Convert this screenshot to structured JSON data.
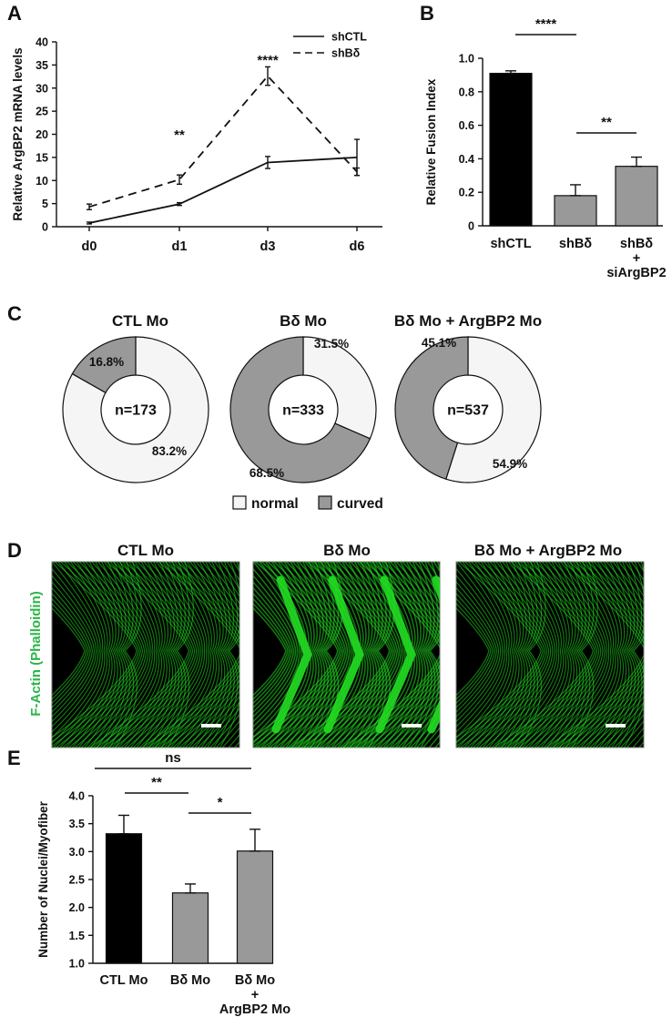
{
  "panels": {
    "A": "A",
    "B": "B",
    "C": "C",
    "D": "D",
    "E": "E"
  },
  "chart_data": [
    {
      "id": "A",
      "type": "line",
      "categories": [
        "d0",
        "d1",
        "d3",
        "d6"
      ],
      "ylabel": "Relative  ArgBP2 mRNA levels",
      "ylim": [
        0,
        40
      ],
      "yticks": [
        0,
        5,
        10,
        15,
        20,
        25,
        30,
        35,
        40
      ],
      "series": [
        {
          "name": "shCTL",
          "style": "solid",
          "values": [
            0.8,
            4.9,
            13.9,
            15.0
          ],
          "errors": [
            0.2,
            0.3,
            1.3,
            3.9
          ]
        },
        {
          "name": "shBδ",
          "style": "dashed",
          "values": [
            4.3,
            10.2,
            32.6,
            11.9
          ],
          "errors": [
            0.6,
            1.0,
            2.0,
            0.8
          ]
        }
      ],
      "annotations": [
        {
          "category": "d1",
          "text": "**"
        },
        {
          "category": "d3",
          "text": "****"
        }
      ]
    },
    {
      "id": "B",
      "type": "bar",
      "categories": [
        "shCTL",
        "shBδ",
        "shBδ\n+\nsiArgBP2"
      ],
      "values": [
        0.91,
        0.18,
        0.355
      ],
      "errors": [
        0.015,
        0.065,
        0.055
      ],
      "colors": [
        "#000000",
        "#999999",
        "#999999"
      ],
      "ylabel": "Relative Fusion Index",
      "ylim": [
        0,
        1.0
      ],
      "yticks": [
        0,
        0.2,
        0.4,
        0.6,
        0.8,
        1.0
      ],
      "ytick_labels": [
        "0",
        "0.2",
        "0.4",
        "0.6",
        "0.8",
        "1.0"
      ],
      "brackets": [
        {
          "from": 0,
          "to": 1,
          "text": "****"
        },
        {
          "from": 1,
          "to": 2,
          "text": "**"
        }
      ]
    },
    {
      "id": "C",
      "type": "pie",
      "legend": [
        {
          "label": "normal",
          "color": "#f5f5f5"
        },
        {
          "label": "curved",
          "color": "#999999"
        }
      ],
      "donuts": [
        {
          "title": "CTL Mo",
          "n_label": "n=173",
          "normal": 83.2,
          "curved": 16.8,
          "normal_label": "83.2%",
          "curved_label": "16.8%"
        },
        {
          "title": "Bδ Mo",
          "n_label": "n=333",
          "normal": 31.5,
          "curved": 68.5,
          "normal_label": "31.5%",
          "curved_label": "68.5%"
        },
        {
          "title": "Bδ Mo + ArgBP2 Mo",
          "n_label": "n=537",
          "normal": 54.9,
          "curved": 45.1,
          "normal_label": "54.9%",
          "curved_label": "45.1%"
        }
      ]
    },
    {
      "id": "E",
      "type": "bar",
      "categories": [
        "CTL Mo",
        "Bδ Mo",
        "Bδ Mo\n+\nArgBP2 Mo"
      ],
      "values": [
        3.32,
        2.26,
        3.01
      ],
      "errors": [
        0.33,
        0.16,
        0.39
      ],
      "colors": [
        "#000000",
        "#999999",
        "#999999"
      ],
      "ylabel": "Number of Nuclei/Myofiber",
      "ylim": [
        1.0,
        4.0
      ],
      "yticks": [
        1.0,
        1.5,
        2.0,
        2.5,
        3.0,
        3.5,
        4.0
      ],
      "ytick_labels": [
        "1.0",
        "1.5",
        "2.0",
        "2.5",
        "3.0",
        "3.5",
        "4.0"
      ],
      "brackets": [
        {
          "from": 0,
          "to": 2,
          "text": "ns"
        },
        {
          "from": 0,
          "to": 1,
          "text": "**"
        },
        {
          "from": 1,
          "to": 2,
          "text": "*"
        }
      ]
    }
  ],
  "microscopy": {
    "side_label": "F-Actin (Phalloidin)",
    "titles": [
      "CTL Mo",
      "Bδ Mo",
      "Bδ Mo + ArgBP2 Mo"
    ],
    "stain_color": "#22dd22"
  }
}
